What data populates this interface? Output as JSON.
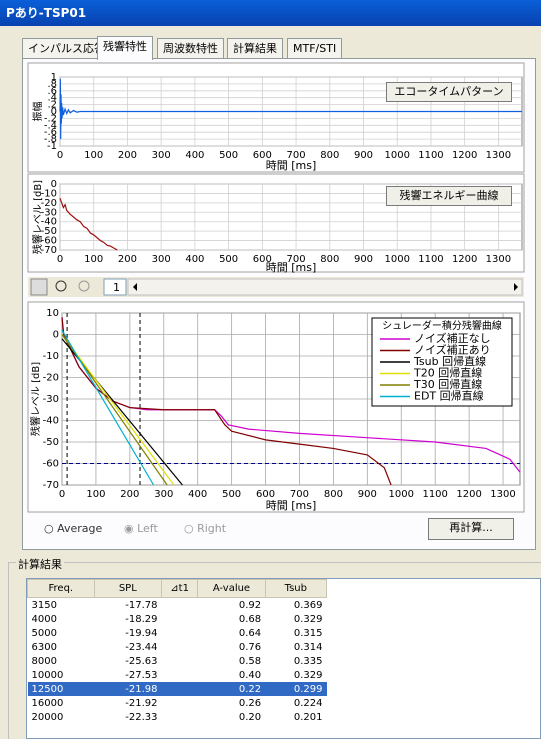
{
  "window": {
    "title": "Pあり-TSP01"
  },
  "tabs": [
    "インパルス応答",
    "残響特性",
    "周波数特性",
    "計算結果",
    "MTF/STI"
  ],
  "chart_data": [
    {
      "type": "line",
      "button": "エコータイムパターン",
      "ylabel": "振幅",
      "xlabel": "時間 [ms]",
      "xlim": [
        0,
        1370
      ],
      "ylim": [
        -1,
        1
      ],
      "xticks": [
        0,
        100,
        200,
        300,
        400,
        500,
        600,
        700,
        800,
        900,
        1000,
        1100,
        1200,
        1300
      ],
      "yticks": [
        1,
        {
          "value": 0.8,
          "label": ".8"
        },
        {
          "value": 0.6,
          "label": ".6"
        },
        {
          "value": 0.4,
          "label": ".4"
        },
        {
          "value": 0.2,
          "label": ".2"
        },
        0,
        {
          "value": -0.2,
          "label": "-.2"
        },
        {
          "value": -0.4,
          "label": "-.4"
        },
        {
          "value": -0.6,
          "label": "-.6"
        },
        {
          "value": -0.8,
          "label": "-.8"
        },
        -1
      ],
      "grid": true,
      "series": [
        {
          "color": "#1060e0",
          "x": [
            0,
            1,
            2,
            3,
            4,
            5,
            6,
            8,
            10,
            15,
            20,
            25,
            30,
            40,
            50,
            60,
            1370
          ],
          "values": [
            0,
            0.95,
            -0.8,
            0.5,
            -0.35,
            0.25,
            -0.2,
            0.12,
            -0.1,
            0.07,
            -0.06,
            0.05,
            -0.04,
            0.03,
            -0.02,
            0,
            0
          ]
        }
      ]
    },
    {
      "type": "line",
      "button": "残響エネルギー曲線",
      "ylabel": "残響レベル [dB]",
      "xlabel": "時間 [ms]",
      "xlim": [
        0,
        1370
      ],
      "ylim": [
        -70,
        0
      ],
      "xticks": [
        0,
        100,
        200,
        300,
        400,
        500,
        600,
        700,
        800,
        900,
        1000,
        1100,
        1200,
        1300
      ],
      "yticks": [
        0,
        -10,
        -20,
        -30,
        -40,
        -50,
        -60,
        -70
      ],
      "grid": true,
      "series": [
        {
          "color": "#a01010",
          "x": [
            0,
            5,
            10,
            15,
            20,
            30,
            40,
            50,
            60,
            70,
            80,
            90,
            100,
            110,
            120,
            130,
            140,
            150,
            160,
            170
          ],
          "values": [
            -15,
            -20,
            -25,
            -22,
            -28,
            -32,
            -35,
            -38,
            -40,
            -45,
            -47,
            -52,
            -54,
            -57,
            -60,
            -62,
            -65,
            -66,
            -68,
            -70
          ]
        }
      ]
    },
    {
      "type": "line",
      "ylabel": "残響レベル [dB]",
      "xlabel": "時間 [ms]",
      "xlim": [
        0,
        1350
      ],
      "ylim": [
        -70,
        10
      ],
      "xticks": [
        0,
        100,
        200,
        300,
        400,
        500,
        600,
        700,
        800,
        900,
        1000,
        1100,
        1200,
        1300
      ],
      "yticks": [
        10,
        0,
        -10,
        -20,
        -30,
        -40,
        -50,
        -60,
        -70
      ],
      "grid": true,
      "legend_title": "シュレーダー積分残響曲線",
      "ref_x": [
        15,
        230
      ],
      "ref_y": [
        -60
      ],
      "series": [
        {
          "name": "ノイズ補正なし",
          "color": "#d000d0",
          "x": [
            0,
            5,
            50,
            100,
            150,
            200,
            250,
            300,
            350,
            400,
            450,
            470,
            490,
            550,
            700,
            900,
            1100,
            1250,
            1320,
            1350
          ],
          "values": [
            8,
            0,
            -15,
            -25,
            -31,
            -34,
            -35,
            -35,
            -35,
            -35,
            -35,
            -38,
            -42,
            -44,
            -46,
            -48,
            -50,
            -53,
            -58,
            -64
          ]
        },
        {
          "name": "ノイズ補正あり",
          "color": "#800000",
          "x": [
            0,
            5,
            50,
            100,
            150,
            200,
            300,
            400,
            450,
            480,
            500,
            600,
            700,
            800,
            900,
            950,
            970
          ],
          "values": [
            8,
            0,
            -15,
            -25,
            -31,
            -34,
            -35,
            -35,
            -35,
            -42,
            -45,
            -49,
            -51,
            -53,
            -56,
            -62,
            -70
          ]
        },
        {
          "name": "Tsub 回帰直線",
          "color": "#000000",
          "x": [
            0,
            355
          ],
          "values": [
            -2,
            -70
          ]
        },
        {
          "name": "T20 回帰直線",
          "color": "#e0e000",
          "x": [
            0,
            330
          ],
          "values": [
            0,
            -70
          ]
        },
        {
          "name": "T30 回帰直線",
          "color": "#808000",
          "x": [
            0,
            310
          ],
          "values": [
            0,
            -70
          ]
        },
        {
          "name": "EDT 回帰直線",
          "color": "#00b0d0",
          "x": [
            0,
            270
          ],
          "values": [
            2,
            -70
          ]
        }
      ]
    }
  ],
  "toolbar": {
    "page": "1"
  },
  "controls": {
    "radios": [
      "Average",
      "Left",
      "Right"
    ],
    "button": "再計算..."
  },
  "results": {
    "title": "計算結果",
    "headers": [
      "Freq.",
      "SPL",
      "⊿t1",
      "A-value",
      "Tsub"
    ],
    "selected_row": 6,
    "rows": [
      [
        "3150",
        "-17.78",
        "0.92",
        "0.369"
      ],
      [
        "4000",
        "-18.29",
        "0.68",
        "0.329"
      ],
      [
        "5000",
        "-19.94",
        "0.64",
        "0.315"
      ],
      [
        "6300",
        "-23.44",
        "0.76",
        "0.314"
      ],
      [
        "8000",
        "-25.63",
        "0.58",
        "0.335"
      ],
      [
        "10000",
        "-27.53",
        "0.40",
        "0.329"
      ],
      [
        "12500",
        "-21.98",
        "0.22",
        "0.299"
      ],
      [
        "16000",
        "-21.92",
        "0.26",
        "0.224"
      ],
      [
        "20000",
        "-22.33",
        "0.20",
        "0.201"
      ]
    ]
  }
}
